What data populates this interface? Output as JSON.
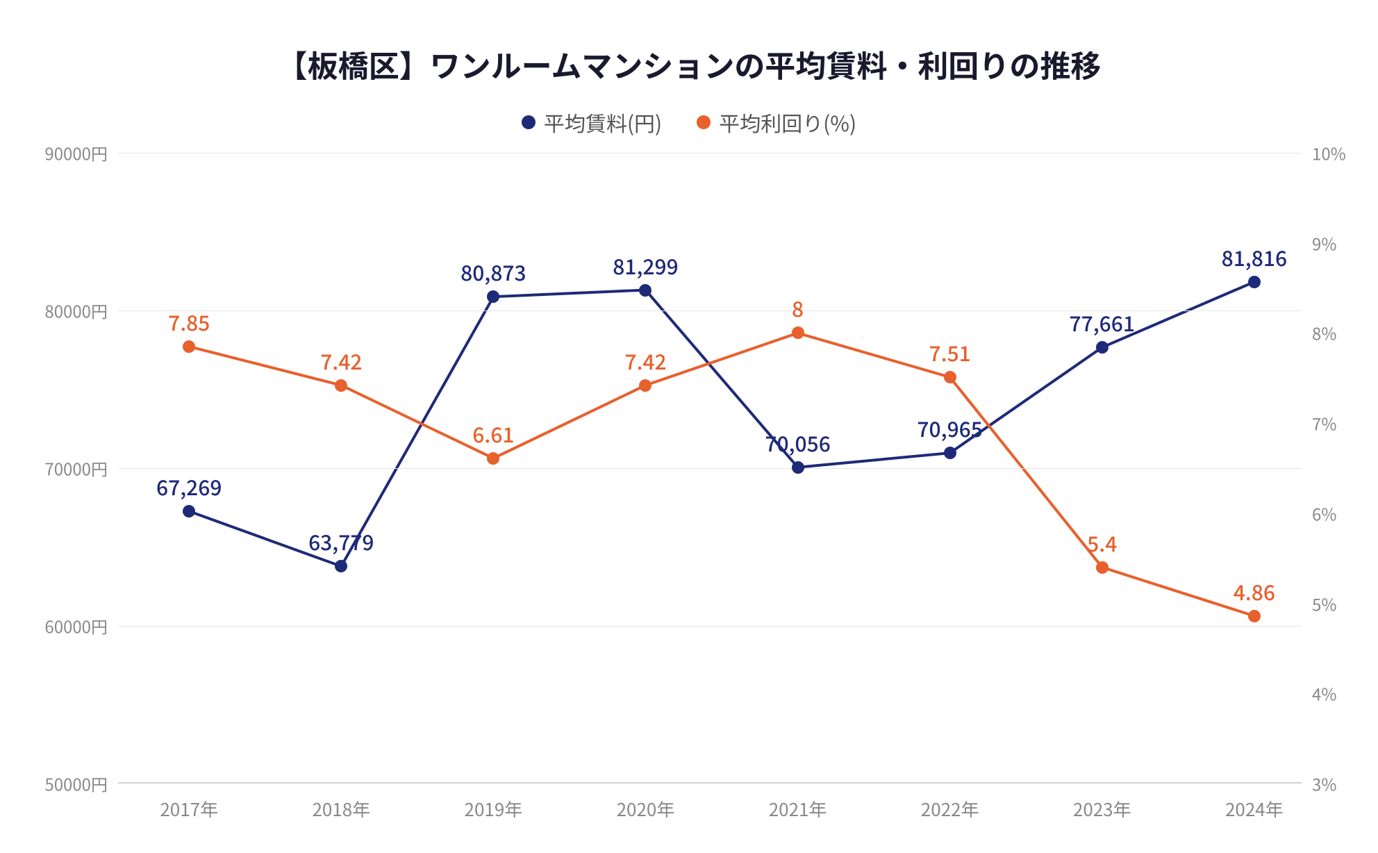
{
  "chart": {
    "type": "line",
    "title": "【板橋区】ワンルームマンションの平均賃料・利回りの推移",
    "title_fontsize": 44,
    "title_color": "#1a1a2e",
    "background_color": "#ffffff",
    "grid_color": "#e5e5e5",
    "axis_label_color": "#888888",
    "axis_fontsize": 24,
    "data_label_fontsize": 30,
    "line_width": 4,
    "marker_size": 18,
    "legend": {
      "items": [
        {
          "label": "平均賃料(円)",
          "color": "#1e2a78"
        },
        {
          "label": "平均利回り(%)",
          "color": "#e8602c"
        }
      ]
    },
    "x": {
      "categories": [
        "2017年",
        "2018年",
        "2019年",
        "2020年",
        "2021年",
        "2022年",
        "2023年",
        "2024年"
      ]
    },
    "y_left": {
      "min": 50000,
      "max": 90000,
      "tick_step": 10000,
      "unit_suffix": "円",
      "ticks": [
        "50000円",
        "60000円",
        "70000円",
        "80000円",
        "90000円"
      ]
    },
    "y_right": {
      "min": 3,
      "max": 10,
      "tick_step": 1,
      "unit_suffix": "%",
      "ticks": [
        "3%",
        "4%",
        "5%",
        "6%",
        "7%",
        "8%",
        "9%",
        "10%"
      ]
    },
    "series": [
      {
        "name": "平均賃料(円)",
        "axis": "left",
        "color": "#1e2a78",
        "values": [
          67269,
          63779,
          80873,
          81299,
          70056,
          70965,
          77661,
          81816
        ],
        "labels": [
          "67,269",
          "63,779",
          "80,873",
          "81,299",
          "70,056",
          "70,965",
          "77,661",
          "81,816"
        ]
      },
      {
        "name": "平均利回り(%)",
        "axis": "right",
        "color": "#e8602c",
        "values": [
          7.85,
          7.42,
          6.61,
          7.42,
          8,
          7.51,
          5.4,
          4.86
        ],
        "labels": [
          "7.85",
          "7.42",
          "6.61",
          "7.42",
          "8",
          "7.51",
          "5.4",
          "4.86"
        ]
      }
    ]
  }
}
